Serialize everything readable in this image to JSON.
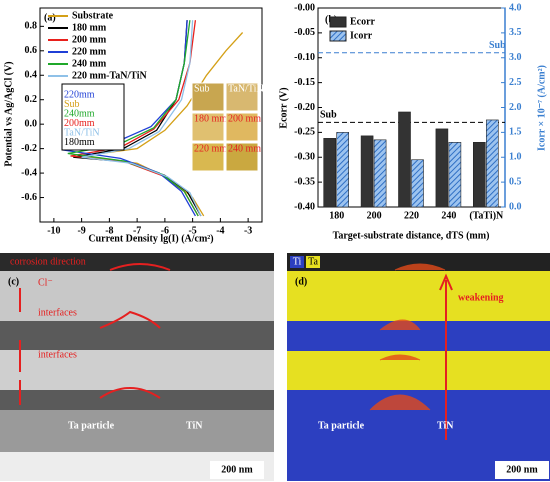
{
  "chart_data": [
    {
      "type": "line",
      "panel_label": "(a)",
      "xlabel": "Current Density lg(I) (A/cm²)",
      "ylabel": "Potential vs Ag/AgCl (V)",
      "xlim": [
        -10.5,
        -2.5
      ],
      "xticks": [
        -10,
        -9,
        -8,
        -7,
        -6,
        -5,
        -4,
        -3
      ],
      "ylim": [
        -0.8,
        0.95
      ],
      "yticks": [
        -0.6,
        -0.4,
        -0.2,
        {
          "value": 0,
          "label": "0.0"
        },
        0.2,
        0.4,
        0.6,
        0.8
      ],
      "legend": "upper left",
      "series": [
        {
          "name": "Substrate",
          "color": "#d4a017",
          "x": [
            -4.6,
            -5.0,
            -5.8,
            -7.0,
            -9.0,
            -7.0,
            -6.0,
            -5.2,
            -4.5,
            -3.8,
            -3.2
          ],
          "values": [
            -0.75,
            -0.6,
            -0.45,
            -0.32,
            -0.26,
            -0.2,
            -0.05,
            0.15,
            0.4,
            0.6,
            0.75
          ]
        },
        {
          "name": "180 mm",
          "color": "#000000",
          "x": [
            -4.7,
            -5.2,
            -6.0,
            -7.3,
            -9.3,
            -7.5,
            -6.3,
            -5.6,
            -5.3,
            -5.2
          ],
          "values": [
            -0.75,
            -0.55,
            -0.42,
            -0.31,
            -0.27,
            -0.2,
            -0.05,
            0.2,
            0.5,
            0.85
          ]
        },
        {
          "name": "200 mm",
          "color": "#e8201c",
          "x": [
            -4.8,
            -5.3,
            -6.1,
            -7.4,
            -9.4,
            -7.6,
            -6.4,
            -5.5,
            -5.1,
            -4.9
          ],
          "values": [
            -0.75,
            -0.55,
            -0.42,
            -0.31,
            -0.26,
            -0.19,
            -0.04,
            0.2,
            0.5,
            0.85
          ]
        },
        {
          "name": "220 mm",
          "color": "#1f3fd6",
          "x": [
            -4.9,
            -5.4,
            -6.2,
            -7.6,
            -9.7,
            -7.8,
            -6.5,
            -5.6,
            -5.3,
            -5.2
          ],
          "values": [
            -0.75,
            -0.55,
            -0.4,
            -0.28,
            -0.21,
            -0.15,
            -0.02,
            0.2,
            0.5,
            0.85
          ]
        },
        {
          "name": "240 mm",
          "color": "#1fa82a",
          "x": [
            -4.8,
            -5.3,
            -6.1,
            -7.5,
            -9.5,
            -7.7,
            -6.4,
            -5.6,
            -5.3,
            -5.1
          ],
          "values": [
            -0.75,
            -0.55,
            -0.41,
            -0.3,
            -0.24,
            -0.17,
            -0.03,
            0.2,
            0.5,
            0.85
          ]
        },
        {
          "name": "220 mm-TaN/TiN",
          "color": "#8fc1e8",
          "x": [
            -4.7,
            -5.1,
            -5.9,
            -7.2,
            -9.0,
            -7.3,
            -6.2,
            -5.4,
            -5.1,
            -5.0
          ],
          "values": [
            -0.75,
            -0.56,
            -0.43,
            -0.32,
            -0.27,
            -0.2,
            -0.06,
            0.2,
            0.5,
            0.85
          ]
        }
      ],
      "inset_labels": [
        "Sub",
        "TaN/TiN",
        "180 mm",
        "200 mm",
        "220 mm",
        "240 mm"
      ],
      "zoom_labels": [
        "220mm",
        "Sub",
        "240mm",
        "200mm",
        "TaN/TiN",
        "180mm"
      ]
    },
    {
      "type": "bar",
      "panel_label": "(b)",
      "xlabel": "Target-substrate distance, dTS (mm)",
      "ylabel": "Ecorr (V)",
      "y2label": "Icorr × 10⁻⁷ (A/cm²)",
      "categories": [
        "180",
        "200",
        "220",
        "240",
        "(TaTi)N"
      ],
      "ylim": [
        -0.4,
        0
      ],
      "yticks": [
        {
          "value": -0.4,
          "label": "-0.40"
        },
        {
          "value": -0.35,
          "label": "-0.35"
        },
        {
          "value": -0.3,
          "label": "-0.30"
        },
        {
          "value": -0.25,
          "label": "-0.25"
        },
        {
          "value": -0.2,
          "label": "-0.20"
        },
        {
          "value": -0.15,
          "label": "-0.15"
        },
        {
          "value": -0.1,
          "label": "-0.10"
        },
        {
          "value": -0.05,
          "label": "-0.05"
        },
        {
          "value": 0,
          "label": "-0.00"
        }
      ],
      "y2lim": [
        0,
        4
      ],
      "y2ticks": [
        {
          "value": 0,
          "label": "0.0"
        },
        0.5,
        {
          "value": 1,
          "label": "1.0"
        },
        1.5,
        {
          "value": 2,
          "label": "2.0"
        },
        2.5,
        {
          "value": 3,
          "label": "3.0"
        },
        3.5,
        {
          "value": 4,
          "label": "4.0"
        }
      ],
      "legend": "upper left",
      "series": [
        {
          "name": "Ecorr",
          "color": "#333333",
          "values": [
            -0.262,
            -0.257,
            -0.209,
            -0.243,
            -0.27
          ]
        },
        {
          "name": "Icorr",
          "color": "#3a7fd0",
          "axis": "y2",
          "values": [
            1.5,
            1.35,
            0.95,
            1.3,
            1.75
          ]
        }
      ],
      "reference_lines": [
        {
          "label": "Sub",
          "value": -0.23,
          "color": "#000000"
        },
        {
          "label": "Sub",
          "value": 3.1,
          "axis": "y2",
          "color": "#3a7fd0"
        }
      ]
    }
  ],
  "panels": [
    {
      "label": "(c)",
      "texts": [
        "corrosion direction",
        "Cl⁻",
        "interfaces",
        "interfaces",
        "Ta particle",
        "TiN",
        "200 nm"
      ]
    },
    {
      "label": "(d)",
      "legend": [
        "Ti",
        "Ta"
      ],
      "texts": [
        "weakening",
        "Ta particle",
        "TiN",
        "200 nm"
      ]
    }
  ]
}
